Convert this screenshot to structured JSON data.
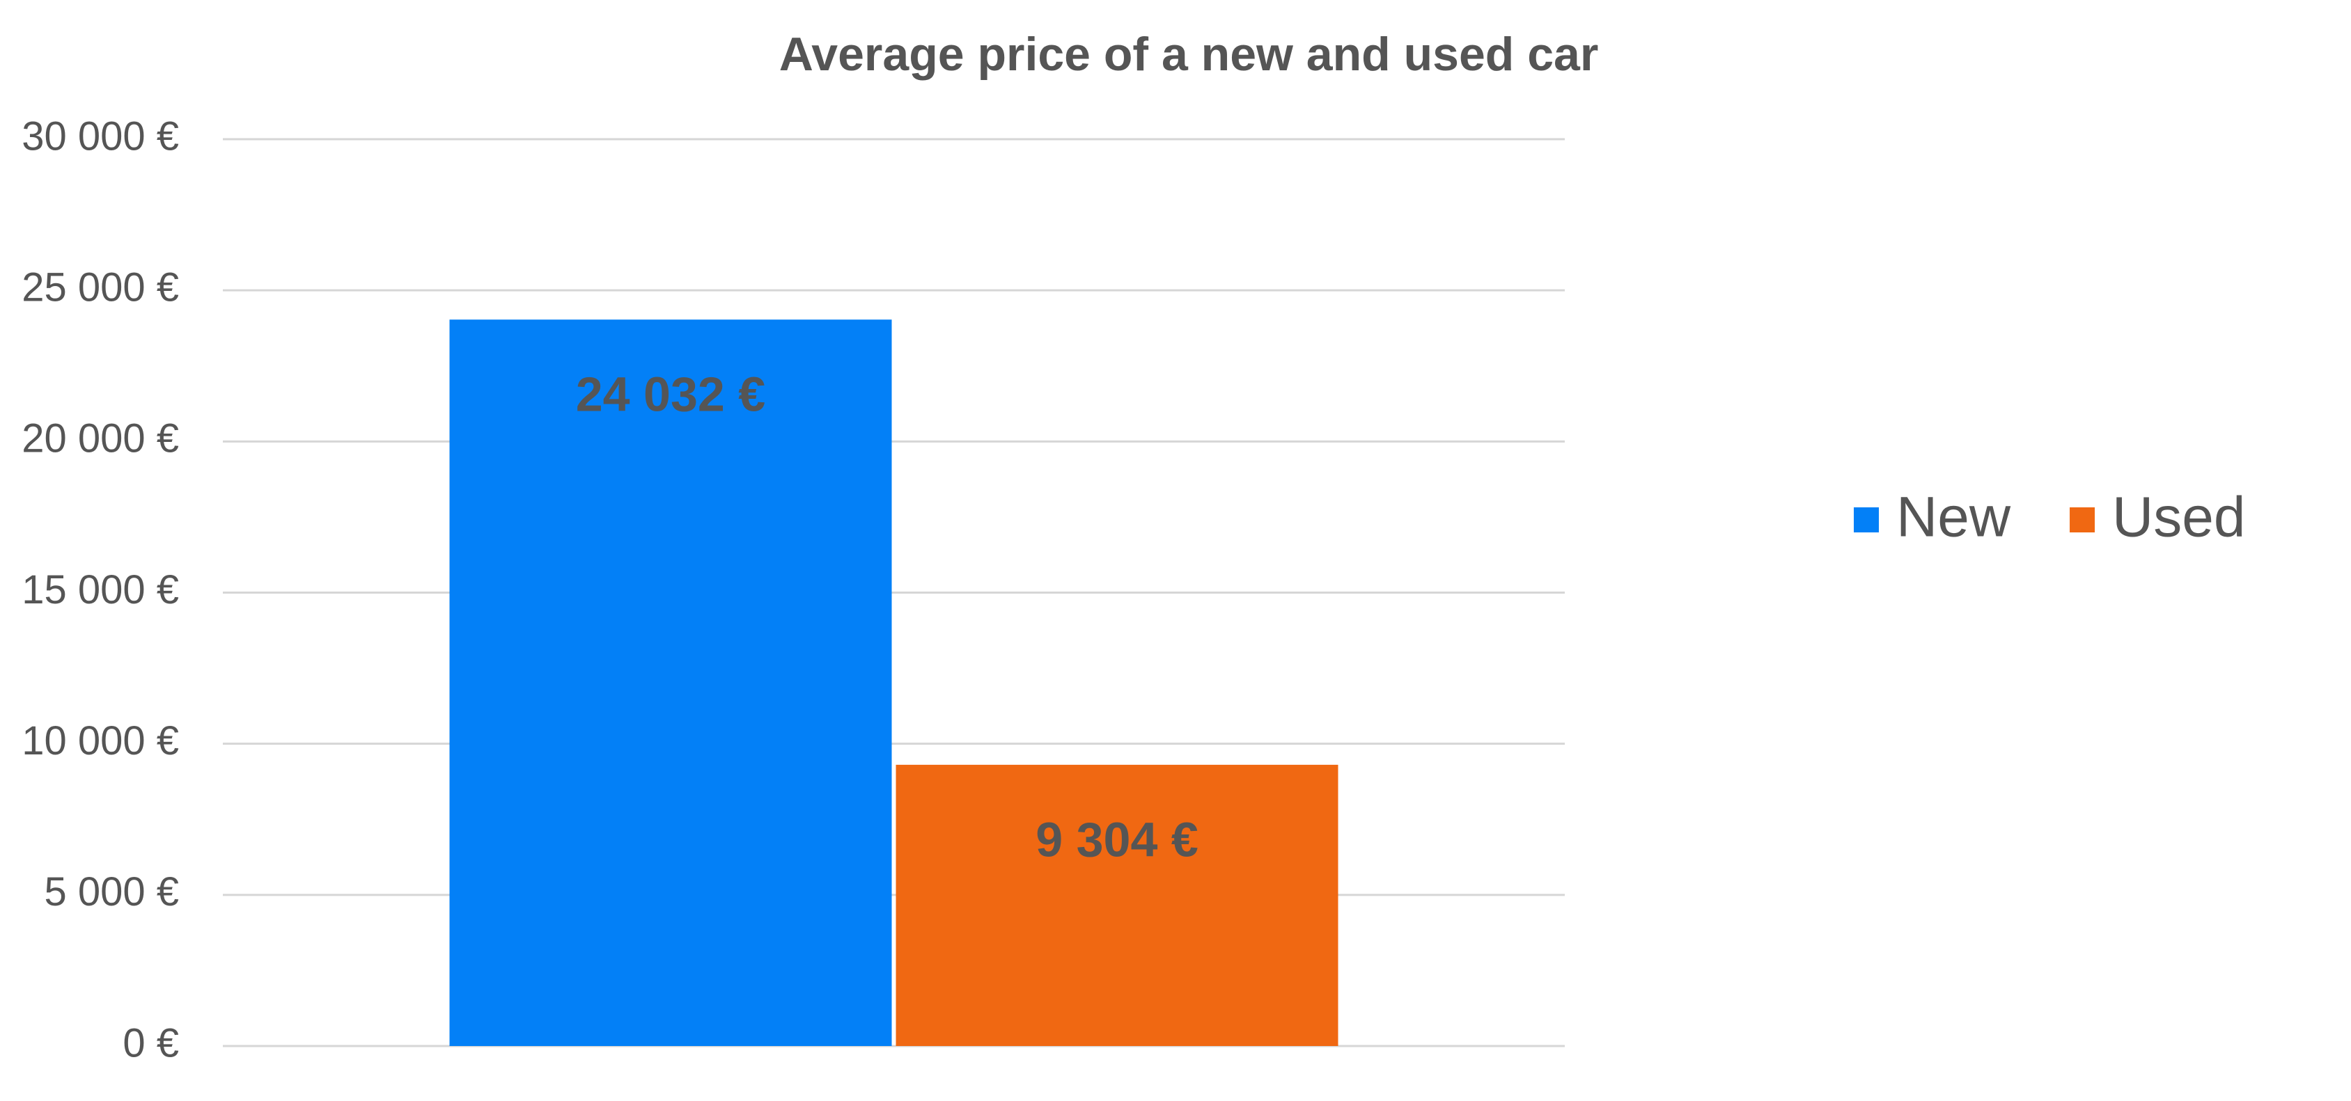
{
  "chart_data": {
    "type": "bar",
    "title": "Average price of a new and used car",
    "categories": [
      null
    ],
    "series": [
      {
        "name": "New",
        "color": "#0380f7",
        "values": [
          24032
        ],
        "value_labels": [
          "24 032 €"
        ]
      },
      {
        "name": "Used",
        "color": "#f06812",
        "values": [
          9304
        ],
        "value_labels": [
          "9 304 €"
        ]
      }
    ],
    "ylim": [
      0,
      30000
    ],
    "yticks": [
      {
        "value": 0,
        "label": "0 €"
      },
      {
        "value": 5000,
        "label": "5 000 €"
      },
      {
        "value": 10000,
        "label": "10 000 €"
      },
      {
        "value": 15000,
        "label": "15 000 €"
      },
      {
        "value": 20000,
        "label": "20 000 €"
      },
      {
        "value": 25000,
        "label": "25 000 €"
      },
      {
        "value": 30000,
        "label": "30 000 €"
      }
    ],
    "grid": true,
    "legend": "right"
  }
}
